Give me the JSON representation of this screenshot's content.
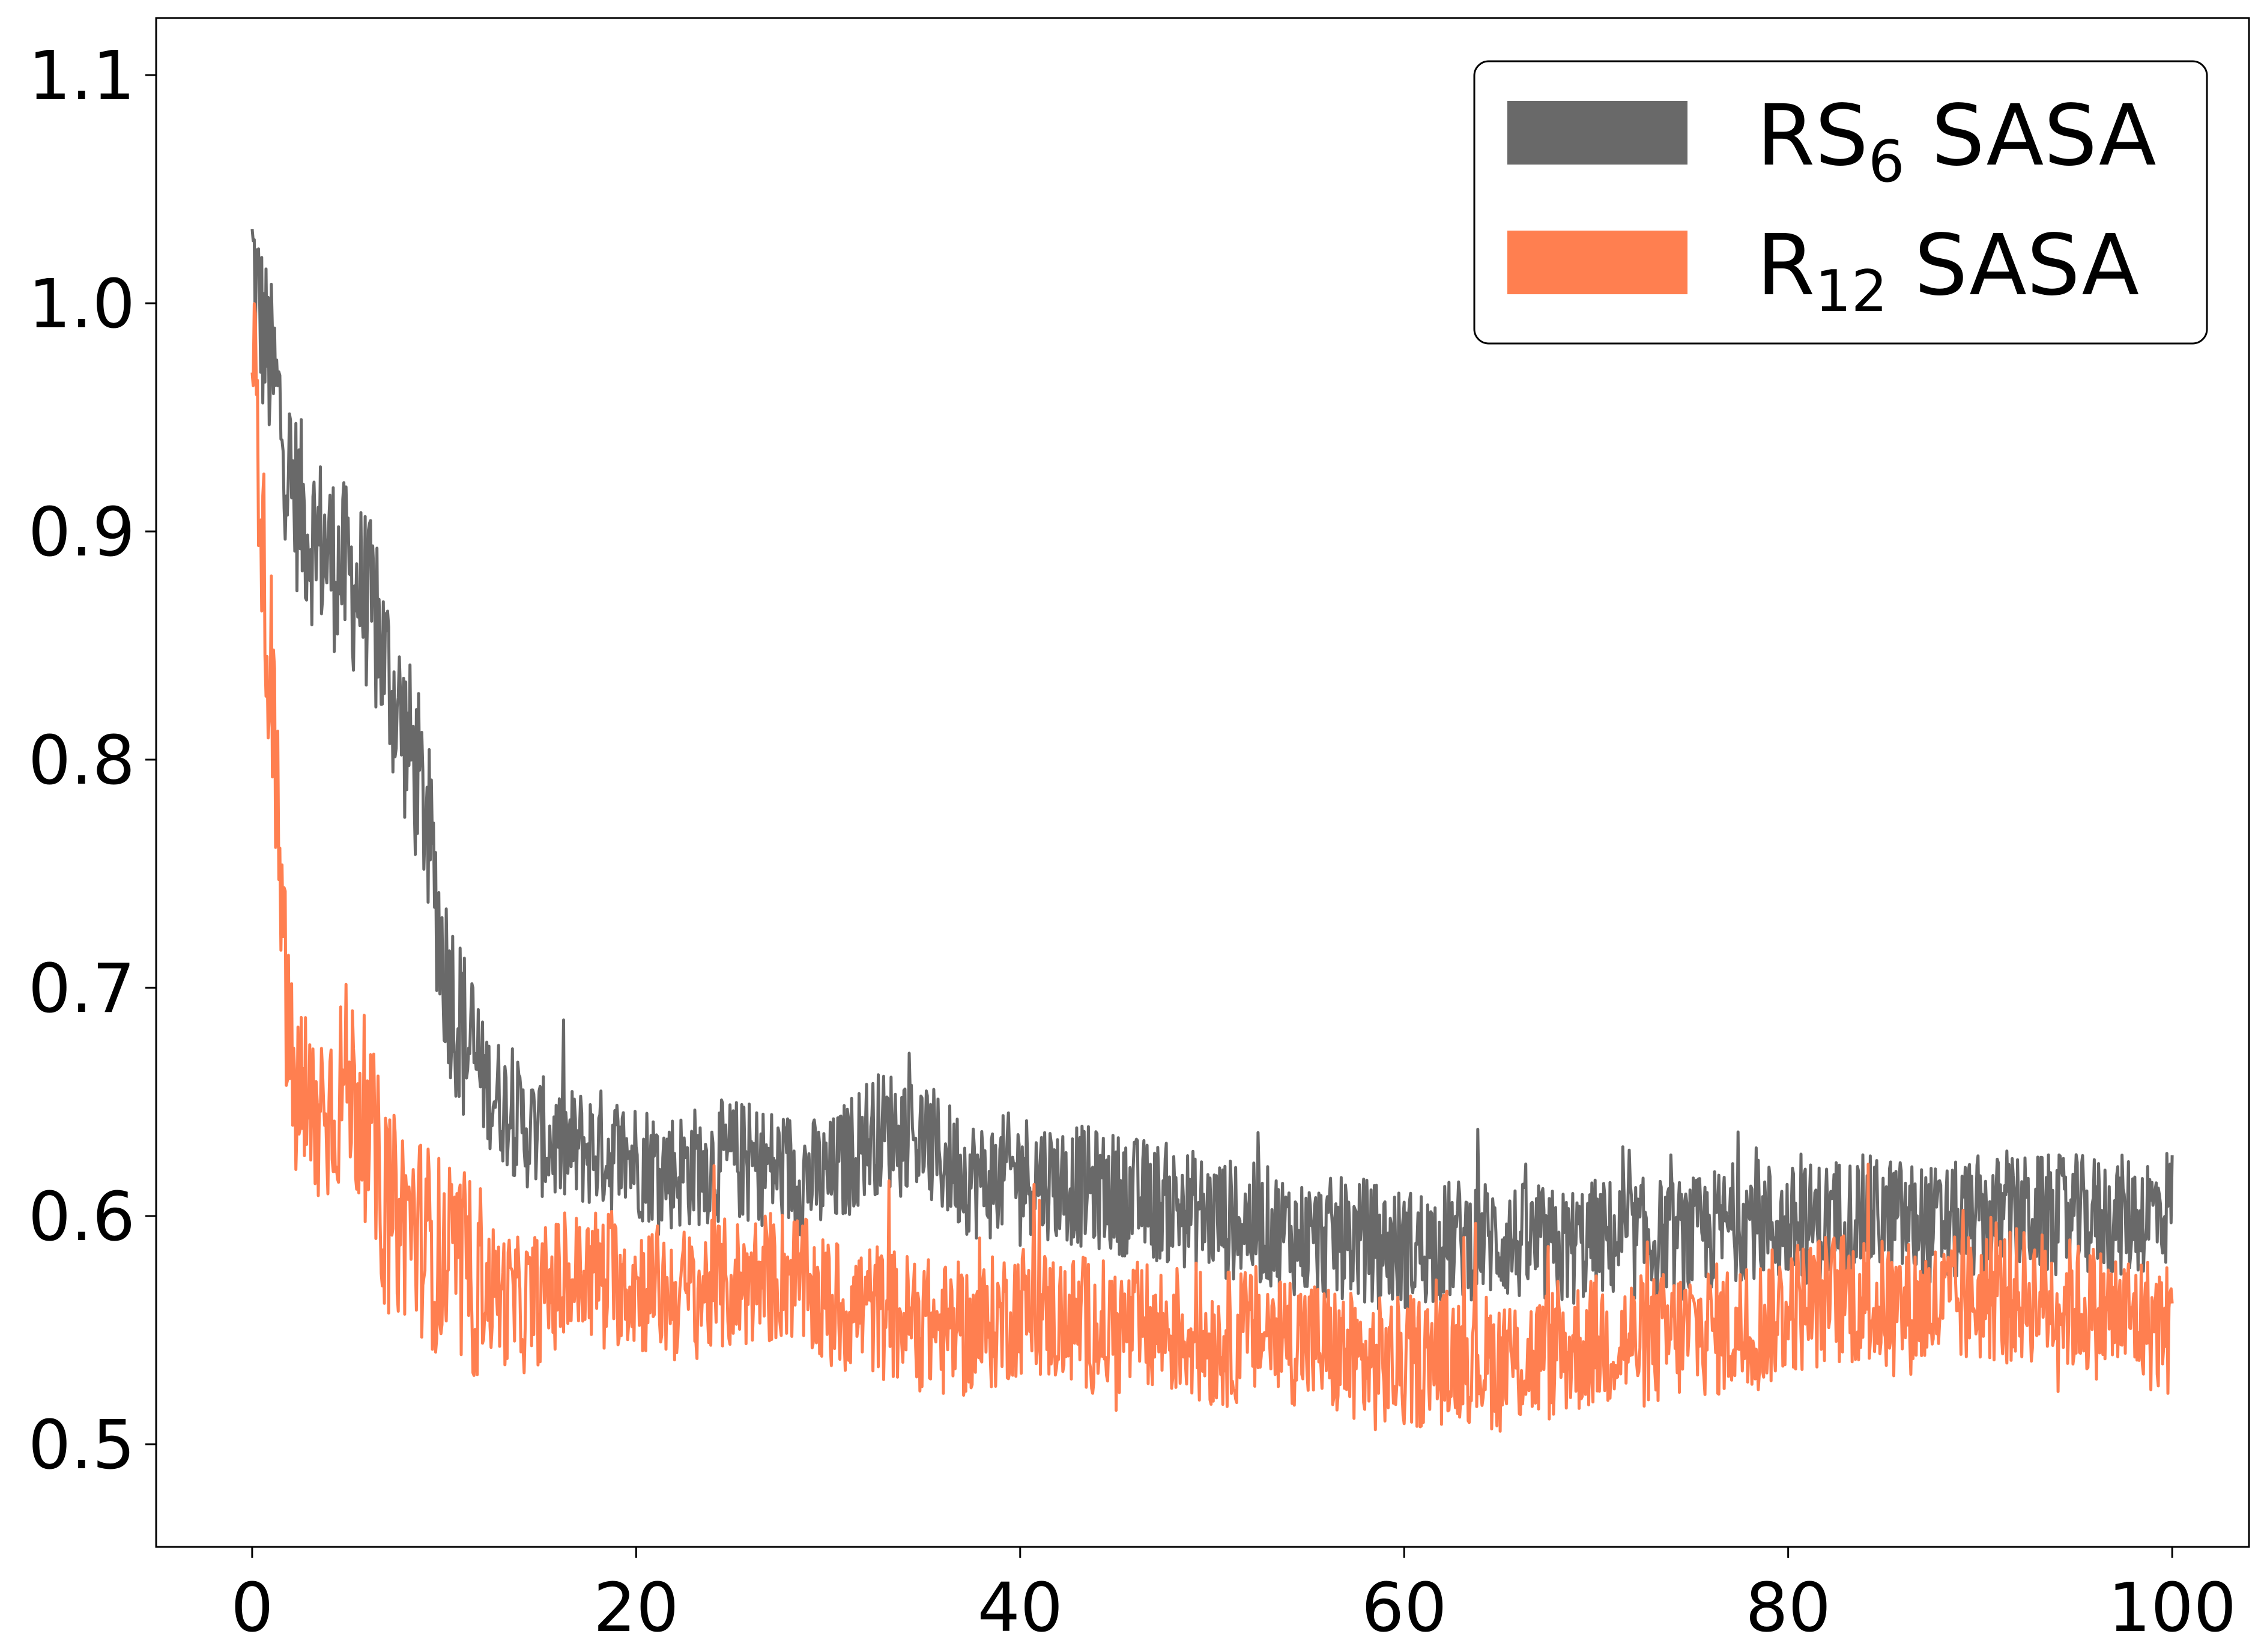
{
  "chart_data": {
    "type": "line",
    "title": "",
    "xlabel": "",
    "ylabel": "",
    "xlim": [
      -5,
      104
    ],
    "ylim": [
      0.455,
      1.125
    ],
    "xticks": [
      0,
      20,
      40,
      60,
      80,
      100
    ],
    "xtick_labels": [
      "0",
      "20",
      "40",
      "60",
      "80",
      "100"
    ],
    "yticks": [
      0.5,
      0.6,
      0.7,
      0.8,
      0.9,
      1.0,
      1.1
    ],
    "ytick_labels": [
      "0.5",
      "0.6",
      "0.7",
      "0.8",
      "0.9",
      "1.0",
      "1.1"
    ],
    "grid": false,
    "legend": {
      "position": "upper right",
      "entries": [
        {
          "base": "RS",
          "sub": "6",
          "rest": " SASA",
          "color": "#696969"
        },
        {
          "base": "R",
          "sub": "12",
          "rest": " SASA",
          "color": "#ff7f50"
        }
      ]
    },
    "series": [
      {
        "name": "RS6 SASA",
        "color": "#696969",
        "x": [
          0,
          0.5,
          1,
          1.5,
          2,
          3,
          4,
          5,
          6,
          7,
          8,
          9,
          10,
          11,
          12,
          14,
          16,
          18,
          20,
          22,
          25,
          28,
          30,
          32,
          34,
          36,
          38,
          40,
          42,
          45,
          48,
          50,
          53,
          55,
          58,
          60,
          63,
          65,
          68,
          70,
          73,
          75,
          78,
          80,
          83,
          85,
          88,
          90,
          93,
          95,
          98,
          100
        ],
        "y": [
          1.02,
          0.99,
          0.97,
          0.95,
          0.92,
          0.9,
          0.89,
          0.88,
          0.87,
          0.84,
          0.81,
          0.78,
          0.71,
          0.68,
          0.66,
          0.64,
          0.63,
          0.63,
          0.625,
          0.62,
          0.625,
          0.62,
          0.615,
          0.635,
          0.64,
          0.625,
          0.615,
          0.62,
          0.615,
          0.61,
          0.605,
          0.6,
          0.595,
          0.59,
          0.59,
          0.585,
          0.59,
          0.59,
          0.585,
          0.59,
          0.59,
          0.59,
          0.6,
          0.595,
          0.6,
          0.6,
          0.595,
          0.6,
          0.6,
          0.6,
          0.6,
          0.605
        ]
      },
      {
        "name": "R12 SASA",
        "color": "#ff7f50",
        "x": [
          0,
          0.5,
          1,
          1.5,
          2,
          3,
          4,
          5,
          6,
          7,
          8,
          9,
          10,
          11,
          12,
          14,
          16,
          18,
          20,
          22,
          25,
          28,
          30,
          32,
          34,
          36,
          38,
          40,
          42,
          45,
          48,
          50,
          53,
          55,
          58,
          60,
          63,
          65,
          68,
          70,
          73,
          75,
          78,
          80,
          83,
          85,
          88,
          90,
          93,
          95,
          98,
          100
        ],
        "y": [
          1.0,
          0.9,
          0.83,
          0.74,
          0.66,
          0.64,
          0.65,
          0.66,
          0.64,
          0.6,
          0.6,
          0.59,
          0.58,
          0.575,
          0.57,
          0.56,
          0.57,
          0.575,
          0.57,
          0.565,
          0.57,
          0.575,
          0.56,
          0.56,
          0.555,
          0.55,
          0.55,
          0.56,
          0.555,
          0.55,
          0.55,
          0.545,
          0.55,
          0.545,
          0.535,
          0.535,
          0.54,
          0.535,
          0.54,
          0.545,
          0.545,
          0.55,
          0.55,
          0.56,
          0.565,
          0.56,
          0.56,
          0.565,
          0.565,
          0.56,
          0.555,
          0.55
        ]
      }
    ]
  }
}
